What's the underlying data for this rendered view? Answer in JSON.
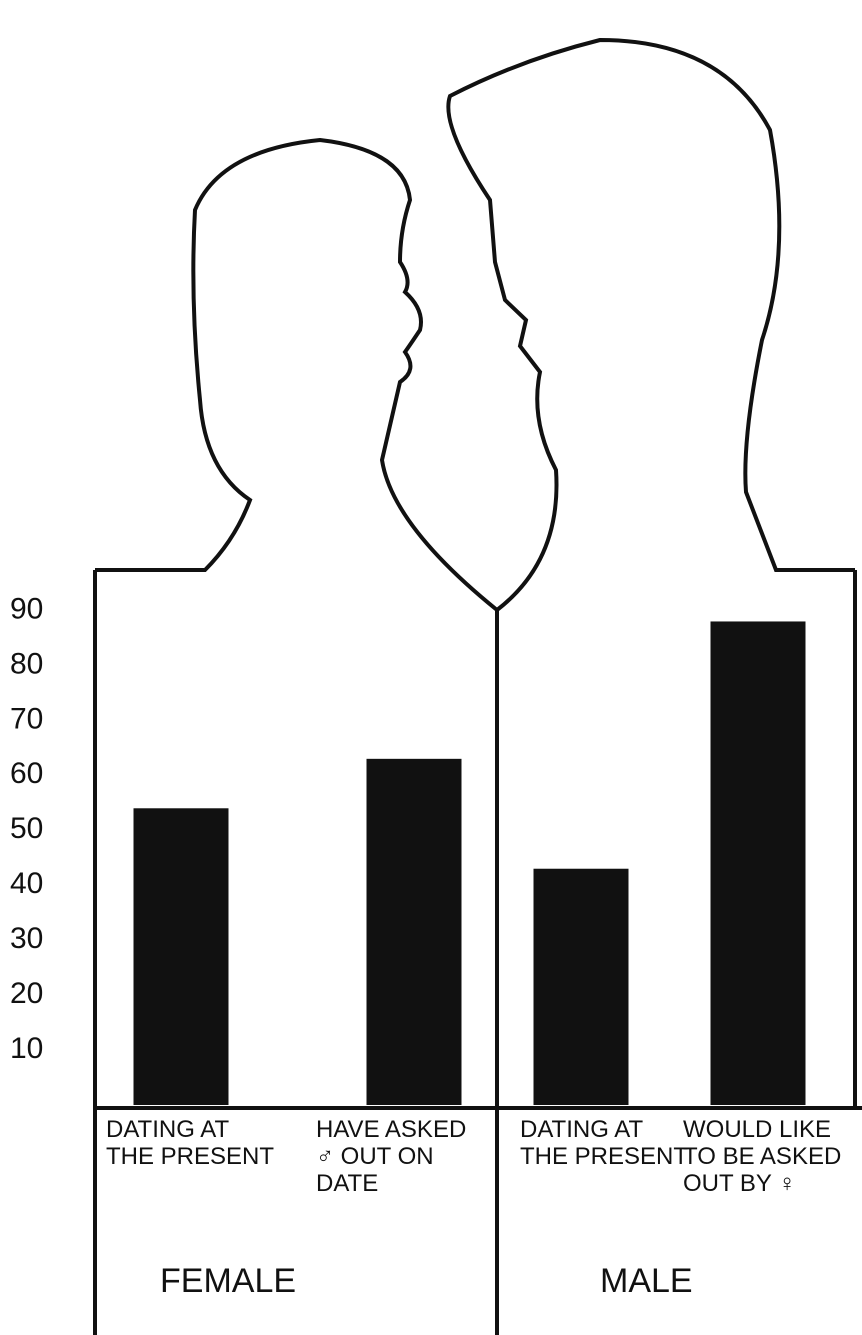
{
  "chart_data": {
    "type": "bar",
    "categories": [
      "DATING AT THE PRESENT",
      "HAVE ASKED ♂ OUT ON DATE",
      "DATING AT THE PRESENT",
      "WOULD LIKE TO BE ASKED OUT BY ♀"
    ],
    "values": [
      54,
      63,
      43,
      88
    ],
    "color": "#111111",
    "group_labels": [
      "FEMALE",
      "MALE"
    ],
    "ylim": [
      0,
      95
    ],
    "yticks": [
      10,
      20,
      30,
      40,
      50,
      60,
      70,
      80,
      90
    ]
  }
}
